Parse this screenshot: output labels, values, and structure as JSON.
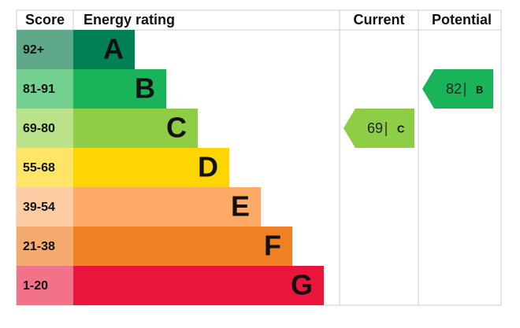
{
  "header": {
    "score": "Score",
    "energy_rating": "Energy rating",
    "current": "Current",
    "potential": "Potential"
  },
  "bands": [
    {
      "score": "92+",
      "rating": "A",
      "color": "#008054",
      "score_color": "#5fa88a"
    },
    {
      "score": "81-91",
      "rating": "B",
      "color": "#19b459",
      "score_color": "#74d08f"
    },
    {
      "score": "69-80",
      "rating": "C",
      "color": "#8dce46",
      "score_color": "#b9e28a"
    },
    {
      "score": "55-68",
      "rating": "D",
      "color": "#ffd500",
      "score_color": "#ffe566"
    },
    {
      "score": "39-54",
      "rating": "E",
      "color": "#fcaa65",
      "score_color": "#fdcca3"
    },
    {
      "score": "21-38",
      "rating": "F",
      "color": "#ef8023",
      "score_color": "#f5aa6e"
    },
    {
      "score": "1-20",
      "rating": "G",
      "color": "#e9153b",
      "score_color": "#f27389"
    }
  ],
  "current": {
    "value": 69,
    "rating": "C"
  },
  "potential": {
    "value": 82,
    "rating": "B"
  }
}
